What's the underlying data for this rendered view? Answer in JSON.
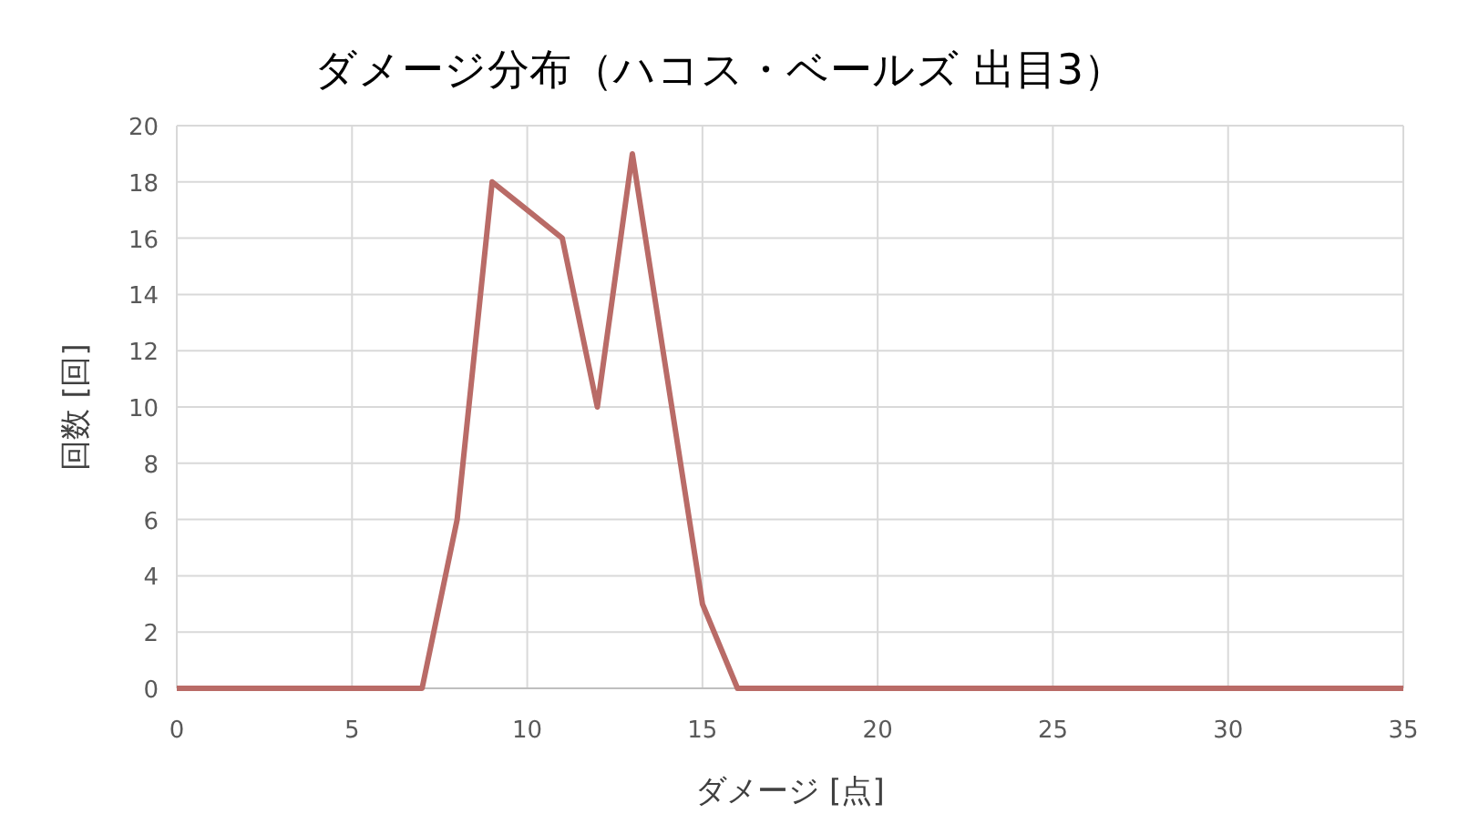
{
  "chart_data": {
    "type": "line",
    "title": "ダメージ分布（ハコス・ベールズ 出目3）",
    "xlabel": "ダメージ [点]",
    "ylabel": "回数 [回]",
    "x": [
      0,
      1,
      2,
      3,
      4,
      5,
      6,
      7,
      8,
      9,
      10,
      11,
      12,
      13,
      14,
      15,
      16,
      17,
      18,
      19,
      20,
      21,
      22,
      23,
      24,
      25,
      26,
      27,
      28,
      29,
      30,
      31,
      32,
      33,
      34,
      35
    ],
    "series": [
      {
        "color": "#b96b67",
        "values": [
          0,
          0,
          0,
          0,
          0,
          0,
          0,
          0,
          6,
          18,
          17,
          16,
          10,
          19,
          11,
          3,
          0,
          0,
          0,
          0,
          0,
          0,
          0,
          0,
          0,
          0,
          0,
          0,
          0,
          0,
          0,
          0,
          0,
          0,
          0,
          0
        ]
      }
    ],
    "xlim": [
      0,
      35
    ],
    "xticks": [
      0,
      5,
      10,
      15,
      20,
      25,
      30,
      35
    ],
    "ylim": [
      0,
      20
    ],
    "yticks": [
      0,
      2,
      4,
      6,
      8,
      10,
      12,
      14,
      16,
      18,
      20
    ],
    "grid": true,
    "marker": "none",
    "line_style": "solid"
  }
}
